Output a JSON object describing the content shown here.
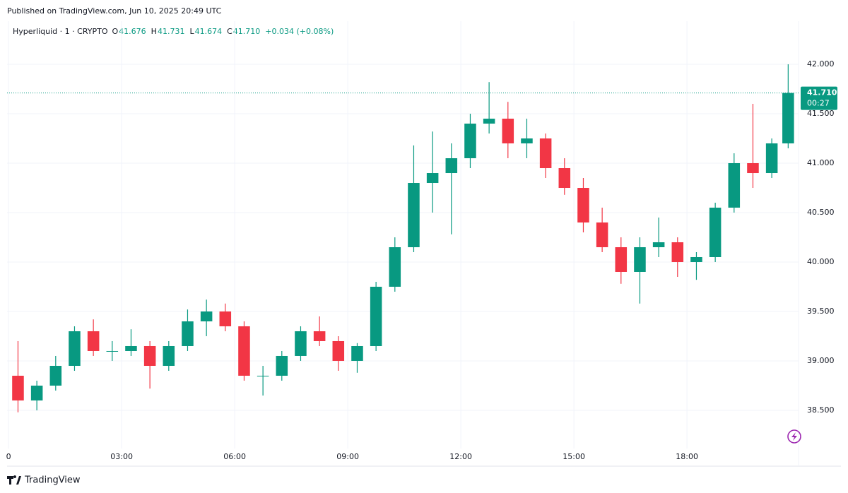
{
  "header": "Published on TradingView.com, Jun 10, 2025 20:49 UTC",
  "legend": {
    "symbol": "Hyperliquid · 1 · CRYPTO",
    "o_label": "O",
    "o_value": "41.676",
    "h_label": "H",
    "h_value": "41.731",
    "l_label": "L",
    "l_value": "41.674",
    "c_label": "C",
    "c_value": "41.710",
    "change": "+0.034 (+0.08%)"
  },
  "footer": "TradingView",
  "chart_data": {
    "type": "candlestick",
    "up_color": "#089981",
    "down_color": "#f23645",
    "grid": true,
    "x": [
      0,
      0.5,
      1,
      1.5,
      2,
      2.5,
      3,
      3.5,
      4,
      4.5,
      5,
      5.5,
      6,
      6.5,
      7,
      7.5,
      8,
      8.5,
      9,
      9.5,
      10,
      10.5,
      11,
      11.5,
      12,
      12.5,
      13,
      13.5,
      14,
      14.5,
      15,
      15.5,
      16,
      16.5,
      17,
      17.5,
      18,
      18.5,
      19,
      19.5,
      20,
      20.5
    ],
    "open": [
      38.85,
      38.6,
      38.75,
      38.95,
      39.3,
      39.1,
      39.1,
      39.15,
      38.95,
      39.15,
      39.4,
      39.5,
      39.35,
      38.85,
      38.85,
      39.05,
      39.3,
      39.2,
      39.0,
      39.15,
      39.75,
      40.15,
      40.8,
      40.9,
      41.05,
      41.4,
      41.45,
      41.2,
      41.25,
      40.95,
      40.75,
      40.4,
      40.15,
      39.9,
      40.15,
      40.2,
      40.0,
      40.05,
      40.55,
      41.0,
      40.9,
      41.2
    ],
    "high": [
      39.2,
      38.8,
      39.05,
      39.35,
      39.42,
      39.2,
      39.32,
      39.2,
      39.2,
      39.52,
      39.62,
      39.58,
      39.4,
      38.95,
      39.1,
      39.35,
      39.45,
      39.25,
      39.18,
      39.8,
      40.25,
      41.18,
      41.32,
      41.2,
      41.5,
      41.82,
      41.62,
      41.45,
      41.3,
      41.05,
      40.85,
      40.55,
      40.25,
      40.25,
      40.45,
      40.25,
      40.1,
      40.6,
      41.1,
      41.6,
      41.25,
      42.0
    ],
    "low": [
      38.48,
      38.5,
      38.7,
      38.9,
      39.05,
      39.0,
      39.05,
      38.72,
      38.9,
      39.1,
      39.25,
      39.3,
      38.8,
      38.65,
      38.8,
      39.0,
      39.15,
      38.9,
      38.88,
      39.1,
      39.7,
      40.1,
      40.5,
      40.28,
      40.95,
      41.3,
      41.05,
      41.05,
      40.85,
      40.68,
      40.3,
      40.1,
      39.78,
      39.58,
      40.05,
      39.85,
      39.82,
      40.0,
      40.5,
      40.75,
      40.85,
      41.15
    ],
    "close": [
      38.6,
      38.75,
      38.95,
      39.3,
      39.1,
      39.1,
      39.15,
      38.95,
      39.15,
      39.4,
      39.5,
      39.35,
      38.85,
      38.85,
      39.05,
      39.3,
      39.2,
      39.0,
      39.15,
      39.75,
      40.15,
      40.8,
      40.9,
      41.05,
      41.4,
      41.45,
      41.2,
      41.25,
      40.95,
      40.75,
      40.4,
      40.15,
      39.9,
      40.15,
      40.2,
      40.0,
      40.05,
      40.55,
      41.0,
      40.9,
      41.2,
      41.71
    ],
    "candle_span": 0.5,
    "last_candle_span": 0.37,
    "last_price": {
      "value": 41.71,
      "label": "41.710"
    },
    "countdown": "00:27",
    "xlim": [
      -0.04,
      20.96
    ],
    "ylim": [
      38.114,
      42.436
    ],
    "xticks": [
      {
        "value": 0,
        "label": "0"
      },
      {
        "value": 3,
        "label": "03:00"
      },
      {
        "value": 6,
        "label": "06:00"
      },
      {
        "value": 9,
        "label": "09:00"
      },
      {
        "value": 12,
        "label": "12:00"
      },
      {
        "value": 15,
        "label": "15:00"
      },
      {
        "value": 18,
        "label": "18:00"
      }
    ],
    "yticks": [
      {
        "value": 38.5,
        "label": "38.500"
      },
      {
        "value": 39,
        "label": "39.000"
      },
      {
        "value": 39.5,
        "label": "39.500"
      },
      {
        "value": 40,
        "label": "40.000"
      },
      {
        "value": 40.5,
        "label": "40.500"
      },
      {
        "value": 41,
        "label": "41.000"
      },
      {
        "value": 41.5,
        "label": "41.500"
      },
      {
        "value": 42,
        "label": "42.000"
      }
    ]
  }
}
